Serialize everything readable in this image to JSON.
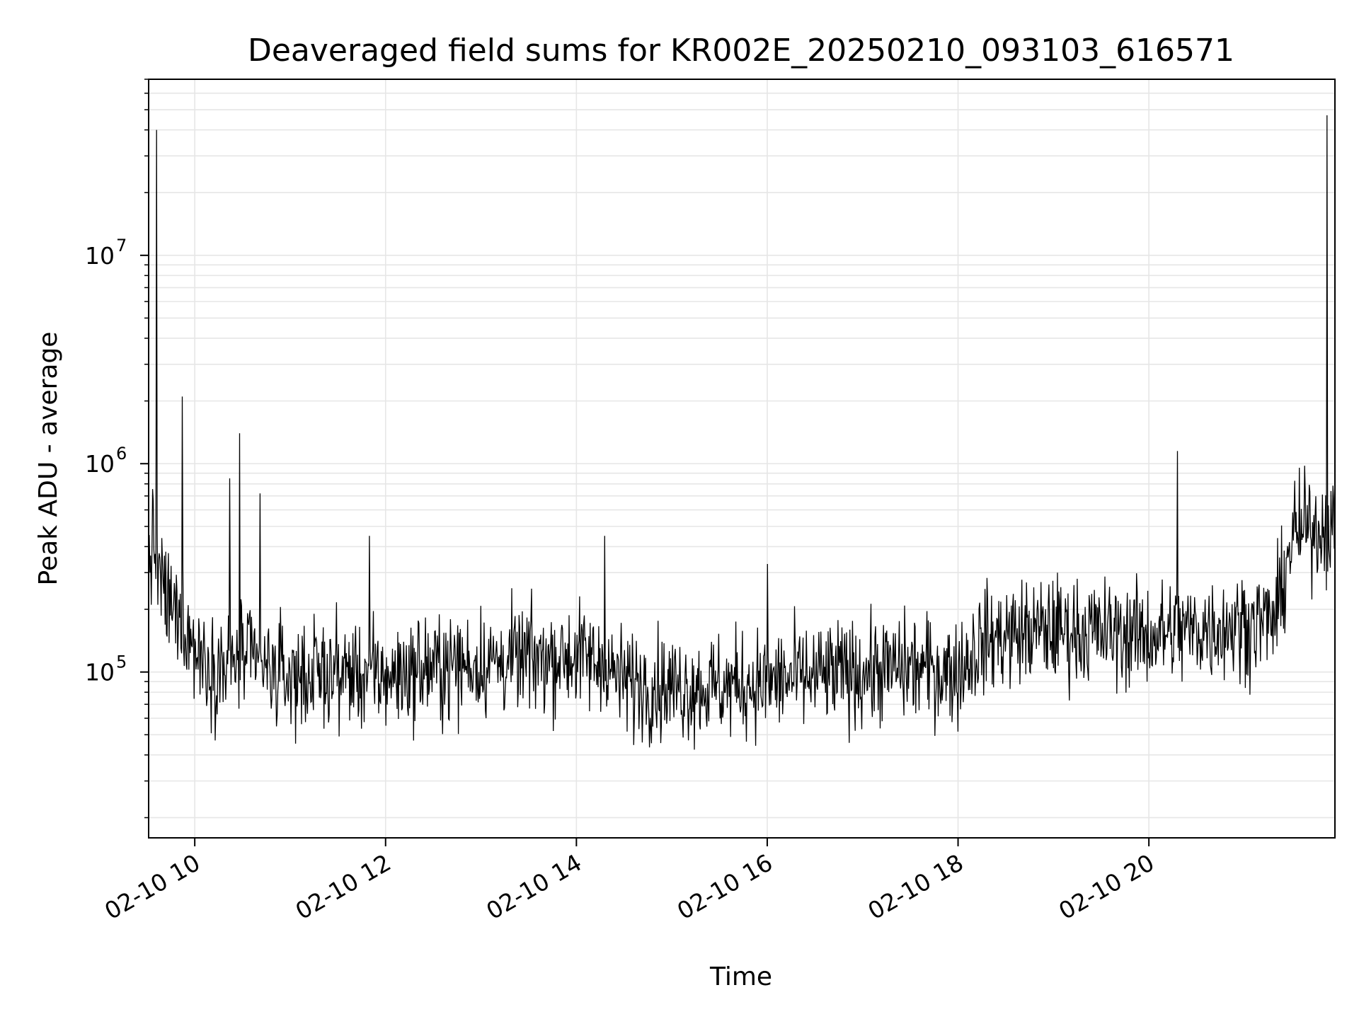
{
  "chart_data": {
    "type": "line",
    "title": "Deaveraged field sums for KR002E_20250210_093103_616571",
    "xlabel": "Time",
    "ylabel": "Peak ADU - average",
    "x_range": [
      "2025-02-10 09:31",
      "2025-02-10 21:57"
    ],
    "x_ticks": [
      {
        "value": "2025-02-10 10:00",
        "label": "02-10 10"
      },
      {
        "value": "2025-02-10 12:00",
        "label": "02-10 12"
      },
      {
        "value": "2025-02-10 14:00",
        "label": "02-10 14"
      },
      {
        "value": "2025-02-10 16:00",
        "label": "02-10 16"
      },
      {
        "value": "2025-02-10 18:00",
        "label": "02-10 18"
      },
      {
        "value": "2025-02-10 20:00",
        "label": "02-10 20"
      }
    ],
    "y_scale": "log",
    "ylim": [
      16000,
      70000000
    ],
    "y_ticks": [
      {
        "value": 100000,
        "base": "10",
        "exp": "5"
      },
      {
        "value": 1000000,
        "base": "10",
        "exp": "6"
      },
      {
        "value": 10000000,
        "base": "10",
        "exp": "7"
      }
    ],
    "grid": true,
    "line_color": "#000000",
    "series": [
      {
        "x": [
          "2025-02-10 09:31",
          "2025-02-10 09:34",
          "2025-02-10 09:37",
          "2025-02-10 09:40",
          "2025-02-10 09:45",
          "2025-02-10 09:50",
          "2025-02-10 09:55",
          "2025-02-10 10:00",
          "2025-02-10 10:10",
          "2025-02-10 10:20",
          "2025-02-10 10:30",
          "2025-02-10 10:45",
          "2025-02-10 11:00",
          "2025-02-10 11:30",
          "2025-02-10 12:00",
          "2025-02-10 12:30",
          "2025-02-10 13:00",
          "2025-02-10 13:30",
          "2025-02-10 14:00",
          "2025-02-10 14:15",
          "2025-02-10 14:30",
          "2025-02-10 15:00",
          "2025-02-10 15:30",
          "2025-02-10 16:00",
          "2025-02-10 16:30",
          "2025-02-10 17:00",
          "2025-02-10 17:30",
          "2025-02-10 18:00",
          "2025-02-10 18:15",
          "2025-02-10 18:30",
          "2025-02-10 19:00",
          "2025-02-10 19:30",
          "2025-02-10 20:00",
          "2025-02-10 20:30",
          "2025-02-10 21:00",
          "2025-02-10 21:20",
          "2025-02-10 21:30",
          "2025-02-10 21:45",
          "2025-02-10 21:57"
        ],
        "y": [
          350000,
          420000,
          300000,
          250000,
          200000,
          180000,
          160000,
          130000,
          110000,
          105000,
          120000,
          100000,
          95000,
          100000,
          95000,
          105000,
          110000,
          115000,
          120000,
          110000,
          90000,
          85000,
          85000,
          90000,
          95000,
          100000,
          105000,
          100000,
          140000,
          150000,
          160000,
          155000,
          150000,
          160000,
          170000,
          180000,
          450000,
          500000,
          480000
        ]
      }
    ],
    "spikes": [
      {
        "x": "2025-02-10 09:36",
        "y": 40000000
      },
      {
        "x": "2025-02-10 09:52",
        "y": 2100000
      },
      {
        "x": "2025-02-10 10:28",
        "y": 1400000
      },
      {
        "x": "2025-02-10 10:22",
        "y": 850000
      },
      {
        "x": "2025-02-10 10:41",
        "y": 720000
      },
      {
        "x": "2025-02-10 11:50",
        "y": 450000
      },
      {
        "x": "2025-02-10 14:18",
        "y": 450000
      },
      {
        "x": "2025-02-10 16:00",
        "y": 330000
      },
      {
        "x": "2025-02-10 20:18",
        "y": 1150000
      },
      {
        "x": "2025-02-10 21:52",
        "y": 47000000
      }
    ]
  }
}
